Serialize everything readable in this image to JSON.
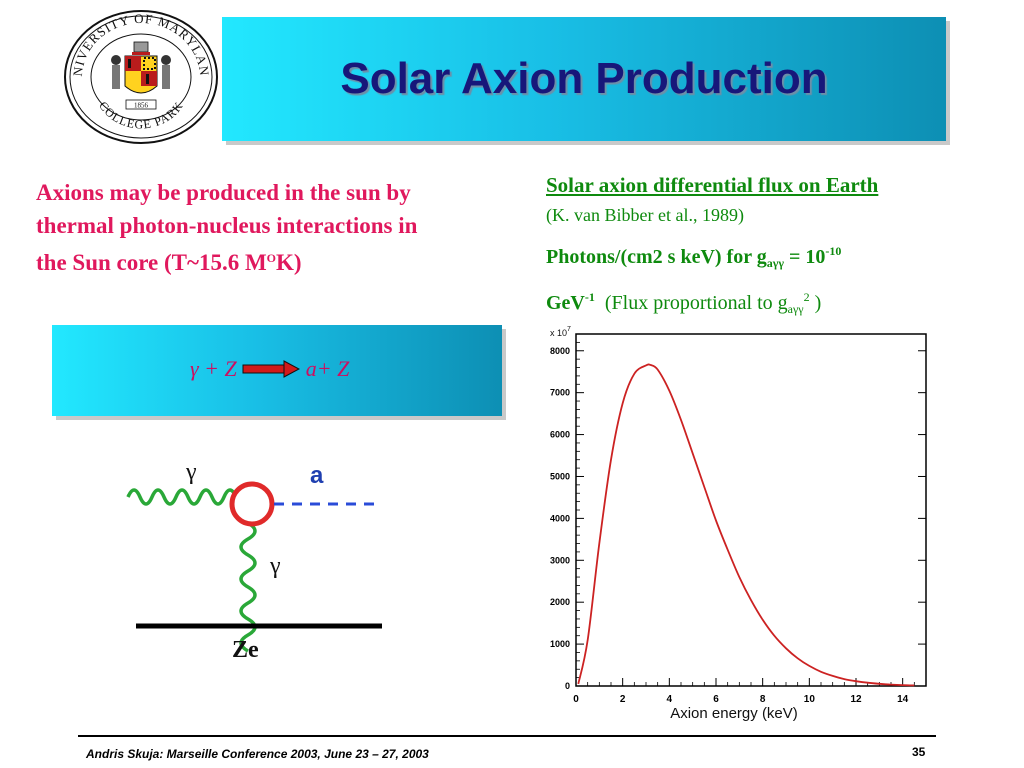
{
  "logo": {
    "text_top": "UNIVERSITY OF MARYLAND",
    "text_bottom": "COLLEGE PARK",
    "year": "1856"
  },
  "slide": {
    "title": "Solar Axion Production"
  },
  "intro": {
    "line1": "Axions may be produced in the sun by",
    "line2": "thermal photon-nucleus interactions in",
    "line3_prefix": "the Sun core (T~15.6 M",
    "line3_sup": "O",
    "line3_suffix": "K)"
  },
  "flux": {
    "heading": "Solar axion differential flux on Earth",
    "reference": "(K. van Bibber et al., 1989)",
    "units_prefix": "Photons/(cm2 s keV) for g",
    "units_sub": "aγγ",
    "units_eq": " = 10",
    "units_exp": "-10",
    "gev": "GeV",
    "gev_exp": "-1",
    "prop_prefix": "(Flux proportional to g",
    "prop_sub": "aγγ",
    "prop_sup": "2",
    "prop_suffix": " )"
  },
  "reaction": {
    "left": "γ + Z",
    "right": "a+ Z"
  },
  "feynman": {
    "gamma_top": "γ",
    "gamma_side": "γ",
    "axion_label": "a",
    "nucleus_label": "Ze"
  },
  "chart_data": {
    "type": "line",
    "xlabel": "Axion energy (keV)",
    "ylabel": "",
    "scale_label": "x 10",
    "scale_exp": "7",
    "xlim": [
      0,
      15
    ],
    "ylim": [
      0,
      8400
    ],
    "xticks": [
      0,
      2,
      4,
      6,
      8,
      10,
      12,
      14
    ],
    "yticks": [
      0,
      1000,
      2000,
      3000,
      4000,
      5000,
      6000,
      7000,
      8000
    ],
    "series": [
      {
        "color": "#cc2222",
        "x": [
          0.1,
          0.5,
          1.0,
          1.5,
          2.0,
          2.5,
          3.0,
          3.2,
          3.5,
          4.0,
          4.5,
          5.0,
          5.5,
          6.0,
          6.5,
          7.0,
          7.5,
          8.0,
          8.5,
          9.0,
          9.5,
          10.0,
          10.5,
          11.0,
          11.5,
          12.0,
          12.5,
          13.0,
          13.5,
          14.0,
          14.5
        ],
        "y": [
          50,
          1100,
          3400,
          5400,
          6750,
          7450,
          7650,
          7660,
          7550,
          7050,
          6350,
          5550,
          4750,
          3950,
          3250,
          2600,
          2050,
          1580,
          1200,
          900,
          660,
          480,
          340,
          240,
          165,
          115,
          78,
          52,
          34,
          22,
          14
        ]
      }
    ]
  },
  "footer": {
    "text": "Andris Skuja: Marseille Conference 2003, June 23 – 27, 2003",
    "page": "35"
  }
}
